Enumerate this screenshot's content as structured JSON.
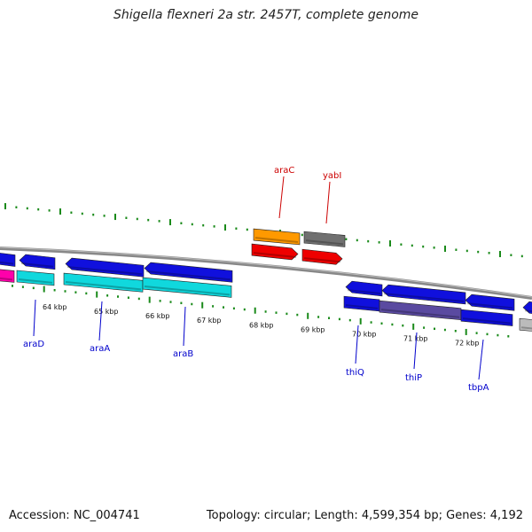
{
  "header": {
    "title": "Shigella flexneri 2a str. 2457T, complete genome"
  },
  "footer": {
    "accession_text": "Accession: NC_004741",
    "topology_text": "Topology: circular; Length: 4,599,354 bp; Genes: 4,192"
  },
  "colors": {
    "backbone": "#888888",
    "tick_green": "#1a8a1a",
    "label_blue": "#0000cc",
    "label_red": "#cc0000",
    "blue_gene": "#1010dd",
    "cyan_gene": "#10d8dd",
    "orange_gene": "#ff9900",
    "red_gene": "#ee0000",
    "gray_gene": "#707070",
    "purple_region": "#5a4aa0",
    "magenta_gene": "#ff00aa"
  },
  "kbp_ticks": [
    "64 kbp",
    "65 kbp",
    "66 kbp",
    "67 kbp",
    "68 kbp",
    "69 kbp",
    "70 kbp",
    "71 kbp",
    "72 kbp"
  ],
  "gene_labels": [
    {
      "name": "araC",
      "color": "red"
    },
    {
      "name": "yabI",
      "color": "red"
    },
    {
      "name": "araD",
      "color": "blue"
    },
    {
      "name": "araA",
      "color": "blue"
    },
    {
      "name": "araB",
      "color": "blue"
    },
    {
      "name": "thiQ",
      "color": "blue"
    },
    {
      "name": "thiP",
      "color": "blue"
    },
    {
      "name": "tbpA",
      "color": "blue"
    }
  ]
}
